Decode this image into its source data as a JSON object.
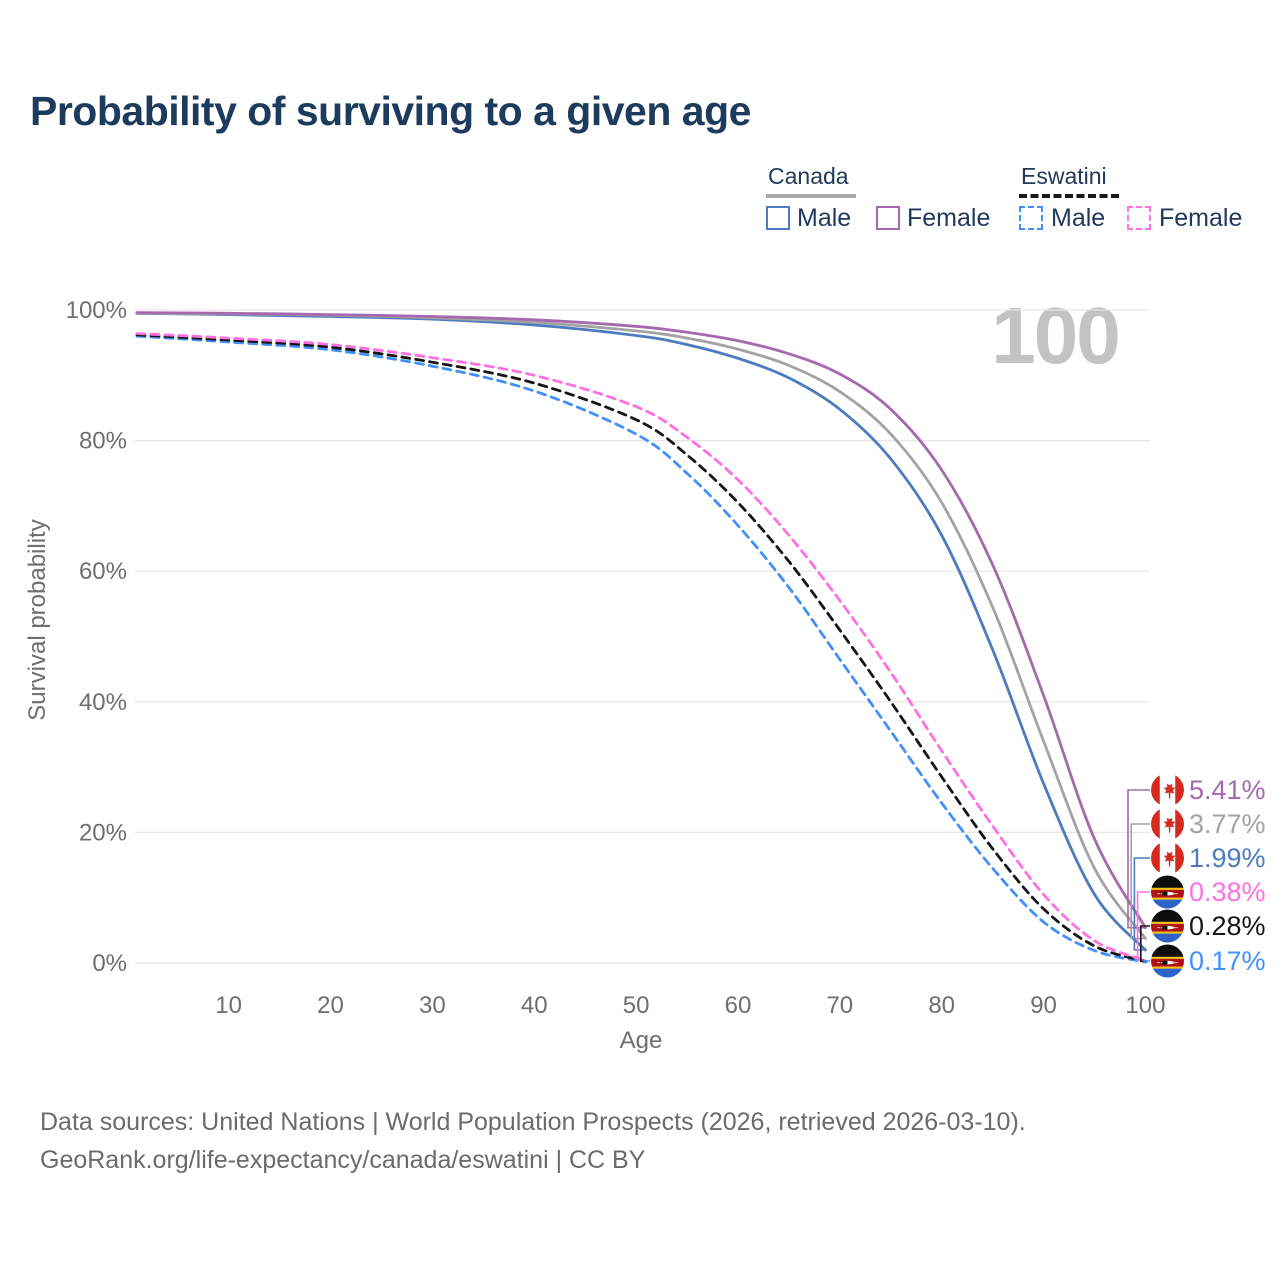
{
  "title": "Probability of surviving to a given age",
  "watermark": "100",
  "legend": {
    "groups": [
      {
        "country": "Canada",
        "line_style": "solid",
        "underline_color": "#a9a9a9",
        "items": [
          {
            "label": "Male",
            "color": "#4c7bc0",
            "dashed": false
          },
          {
            "label": "Female",
            "color": "#a668ae",
            "dashed": false
          }
        ]
      },
      {
        "country": "Eswatini",
        "line_style": "dashed",
        "underline_color": "#1a1a1a",
        "items": [
          {
            "label": "Male",
            "color": "#4290fa",
            "dashed": true
          },
          {
            "label": "Female",
            "color": "#ff70e2",
            "dashed": true
          }
        ]
      }
    ]
  },
  "chart_data": {
    "type": "line",
    "title": "Probability of surviving to a given age",
    "xlabel": "Age",
    "ylabel": "Survival probability",
    "xlim": [
      1,
      100
    ],
    "ylim": [
      0,
      100
    ],
    "grid": "horizontal",
    "x_ticks": [
      10,
      20,
      30,
      40,
      50,
      60,
      70,
      80,
      90,
      100
    ],
    "y_ticks": [
      0,
      20,
      40,
      60,
      80,
      100
    ],
    "y_tick_labels": [
      "0%",
      "20%",
      "40%",
      "60%",
      "80%",
      "100%"
    ],
    "x": [
      1,
      10,
      20,
      30,
      40,
      50,
      55,
      60,
      65,
      70,
      75,
      80,
      85,
      90,
      95,
      100
    ],
    "series": [
      {
        "name": "Canada Female",
        "color": "#a668ae",
        "dashed": false,
        "flag": "canada",
        "end_label": "5.41%",
        "values": [
          99.6,
          99.5,
          99.3,
          99.0,
          98.5,
          97.5,
          96.6,
          95.3,
          93.3,
          90.2,
          84.8,
          75.5,
          61.0,
          41.0,
          19.0,
          5.41
        ]
      },
      {
        "name": "Canada Both sexes",
        "color": "#a3a3a3",
        "dashed": false,
        "flag": "canada",
        "end_label": "3.77%",
        "values": [
          99.5,
          99.4,
          99.2,
          98.8,
          98.1,
          96.8,
          95.7,
          94.0,
          91.5,
          87.5,
          81.0,
          70.5,
          54.5,
          34.0,
          14.5,
          3.77
        ]
      },
      {
        "name": "Canada Male",
        "color": "#4c7bc0",
        "dashed": false,
        "flag": "canada",
        "end_label": "1.99%",
        "values": [
          99.5,
          99.3,
          99.0,
          98.6,
          97.7,
          96.1,
          94.7,
          92.6,
          89.6,
          84.8,
          77.2,
          65.5,
          48.0,
          27.5,
          10.5,
          1.99
        ]
      },
      {
        "name": "Eswatini Female",
        "color": "#ff70e2",
        "dashed": true,
        "flag": "eswatini",
        "end_label": "0.38%",
        "values": [
          96.4,
          95.7,
          94.7,
          92.7,
          90.0,
          85.2,
          80.5,
          74.0,
          65.5,
          55.5,
          44.5,
          32.5,
          21.0,
          10.5,
          3.4,
          0.38
        ]
      },
      {
        "name": "Eswatini Both sexes",
        "color": "#161616",
        "dashed": true,
        "flag": "eswatini",
        "end_label": "0.28%",
        "values": [
          96.2,
          95.4,
          94.3,
          92.0,
          88.8,
          83.2,
          77.8,
          70.5,
          61.5,
          51.0,
          40.0,
          28.5,
          17.5,
          8.3,
          2.6,
          0.28
        ]
      },
      {
        "name": "Eswatini Male",
        "color": "#4290fa",
        "dashed": true,
        "flag": "eswatini",
        "end_label": "0.17%",
        "values": [
          96.0,
          95.1,
          93.9,
          91.4,
          87.6,
          81.0,
          75.0,
          67.0,
          57.5,
          46.5,
          35.5,
          24.5,
          14.5,
          6.3,
          1.9,
          0.17
        ]
      }
    ],
    "end_labels_order_top_to_bottom": [
      "5.41%",
      "3.77%",
      "1.99%",
      "0.38%",
      "0.28%",
      "0.17%"
    ]
  },
  "footer": {
    "line1": "Data sources: United Nations | World Population Prospects (2026, retrieved 2026-03-10).",
    "line2": "GeoRank.org/life-expectancy/canada/eswatini | CC BY"
  },
  "colors": {
    "title_text": "#1d3b5d",
    "axis_text": "#6e6e6e",
    "gridline": "#e6e6e6",
    "watermark": "#c3c3c3",
    "footer_text": "#6b6b6b"
  }
}
